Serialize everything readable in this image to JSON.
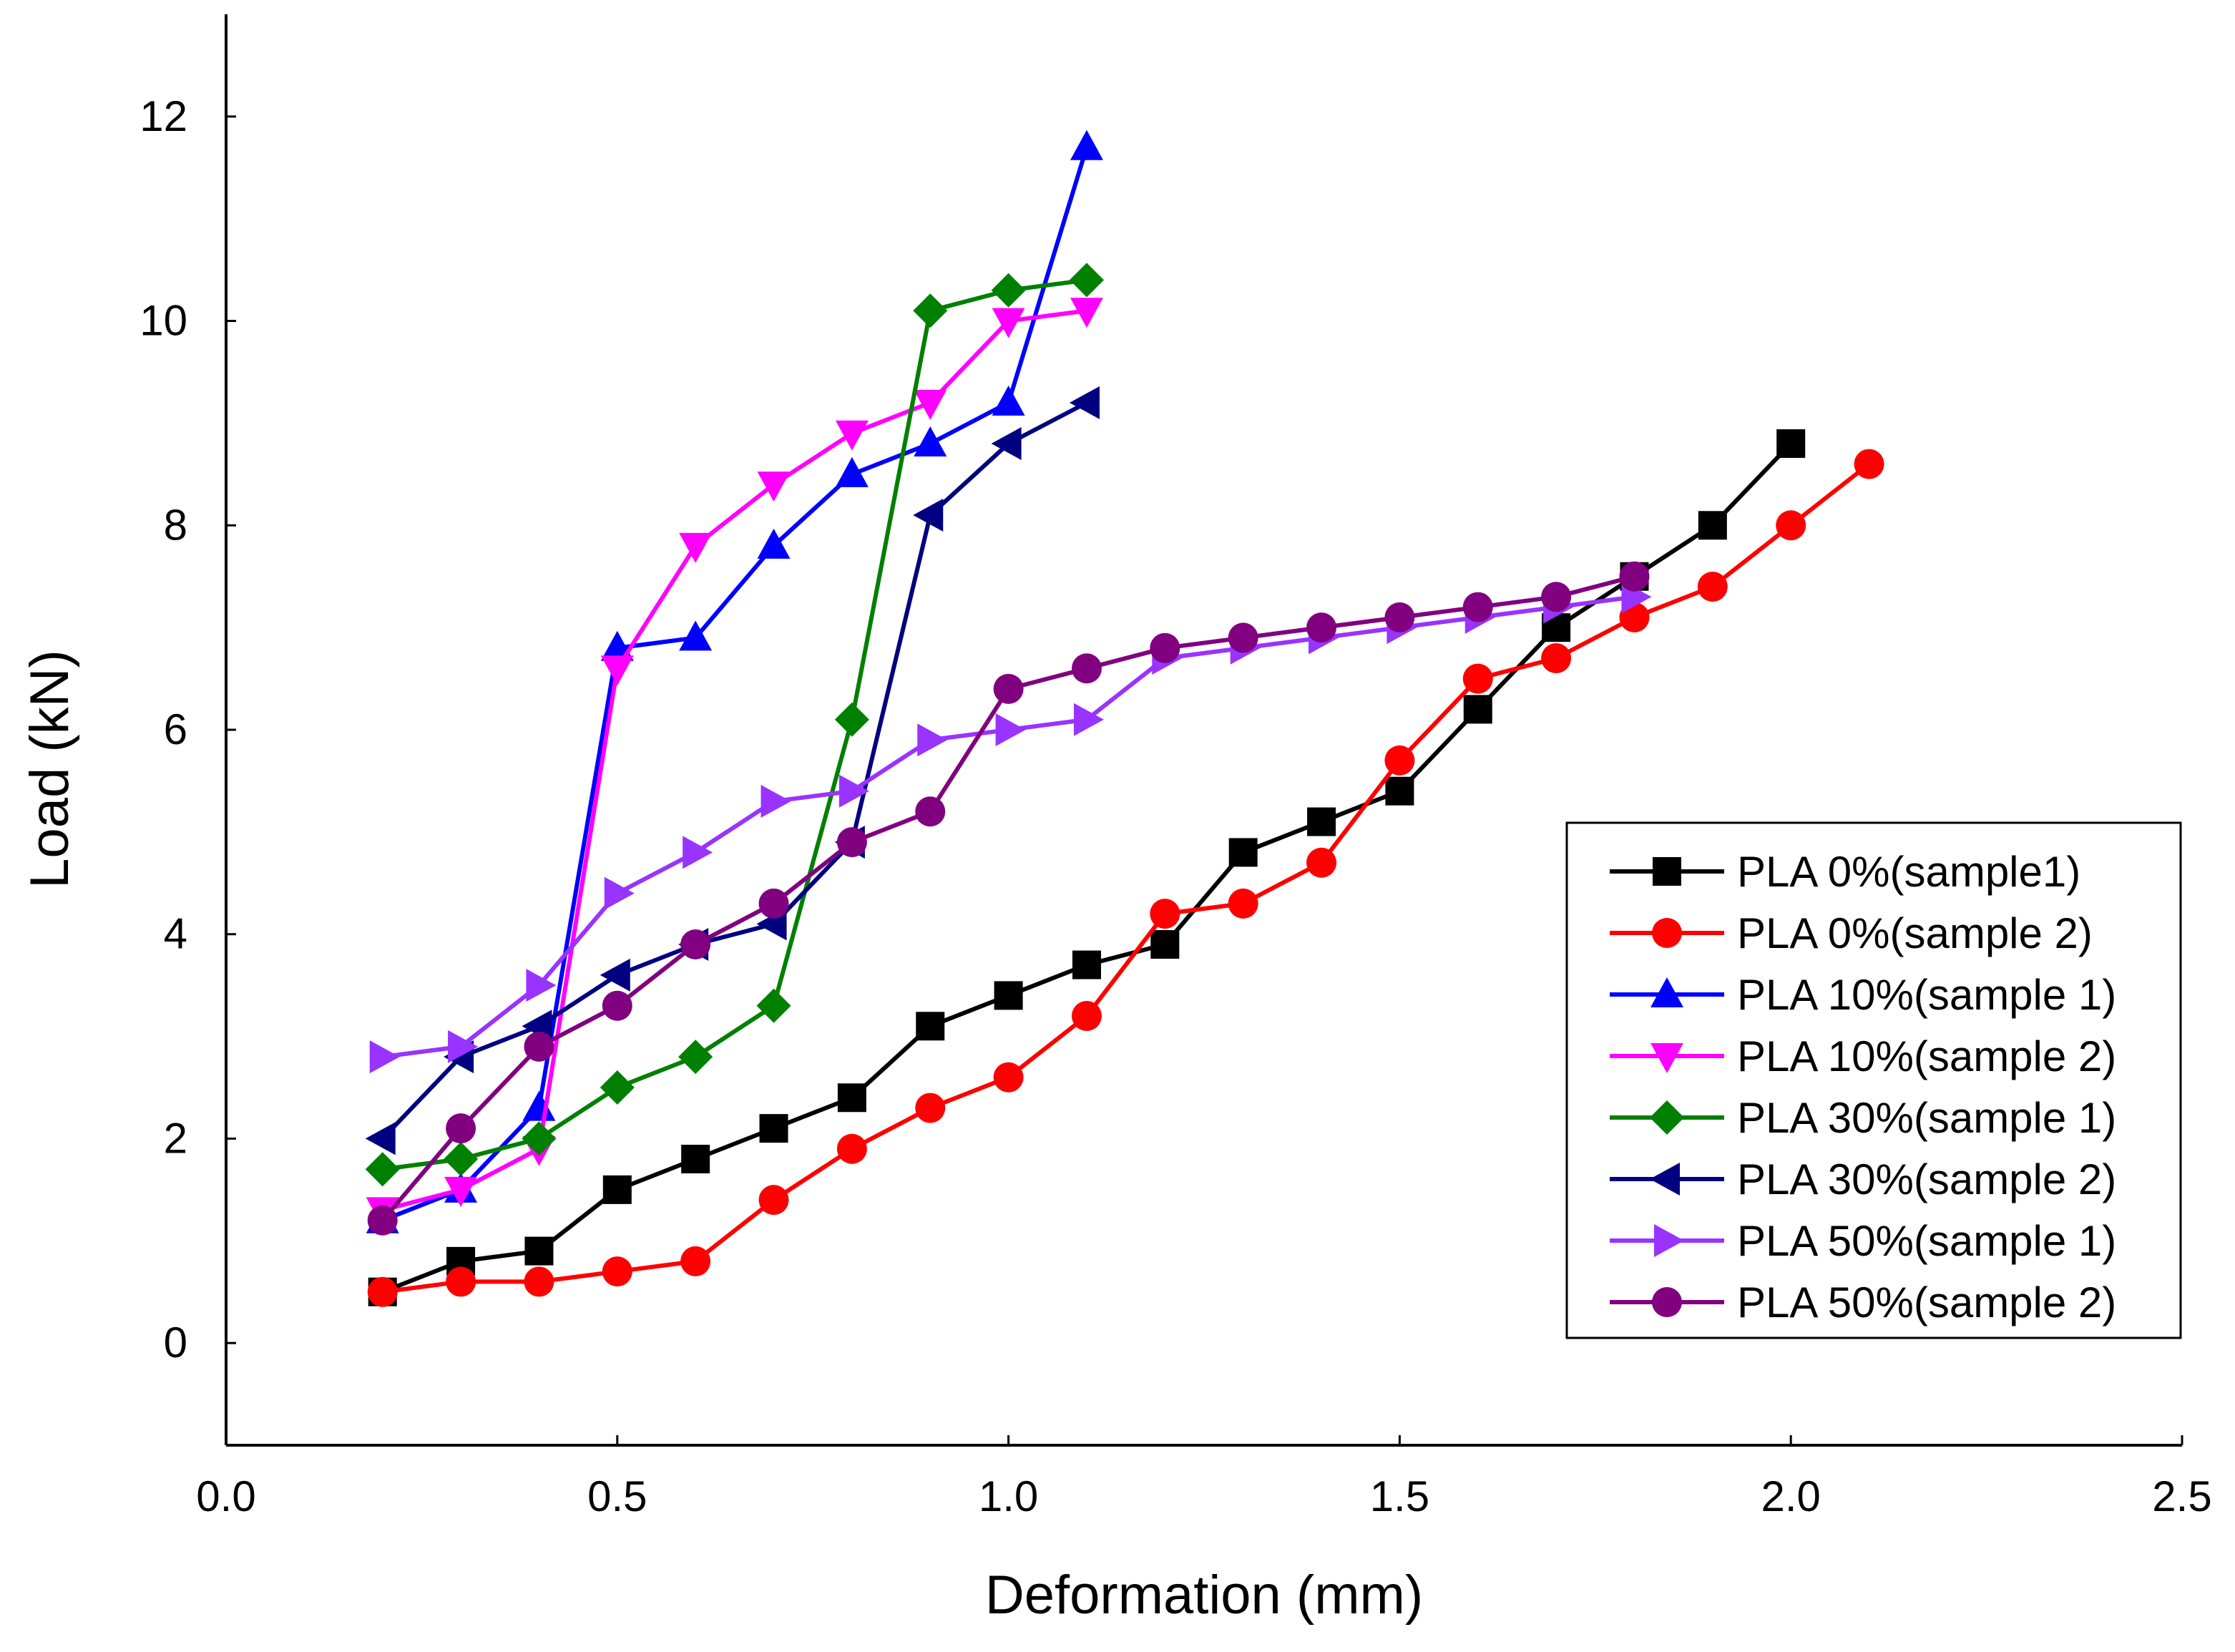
{
  "chart_data": {
    "type": "line",
    "title": "",
    "xlabel": "Deformation (mm)",
    "ylabel": "Load (kN)",
    "xlim": [
      0.0,
      2.5
    ],
    "ylim": [
      -1,
      13
    ],
    "xticks": [
      0.0,
      0.5,
      1.0,
      1.5,
      2.0,
      2.5
    ],
    "xtick_labels": [
      "0.0",
      "0.5",
      "1.0",
      "1.5",
      "2.0",
      "2.5"
    ],
    "yticks": [
      0,
      2,
      4,
      6,
      8,
      10,
      12
    ],
    "ytick_labels": [
      "0",
      "2",
      "4",
      "6",
      "8",
      "10",
      "12"
    ],
    "grid": false,
    "legend_position": "bottom-right",
    "series": [
      {
        "name": "PLA 0%(sample1)",
        "color": "#000000",
        "marker": "square",
        "x": [
          0.2,
          0.3,
          0.4,
          0.5,
          0.6,
          0.7,
          0.8,
          0.9,
          1.0,
          1.1,
          1.2,
          1.3,
          1.4,
          1.5,
          1.6,
          1.7,
          1.8,
          1.9,
          2.0
        ],
        "y": [
          0.5,
          0.8,
          0.9,
          1.5,
          1.8,
          2.1,
          2.4,
          3.1,
          3.4,
          3.7,
          3.9,
          4.8,
          5.1,
          5.4,
          6.2,
          7.0,
          7.5,
          8.0,
          8.8
        ]
      },
      {
        "name": "PLA 0%(sample 2)",
        "color": "#ff0000",
        "marker": "circle",
        "x": [
          0.2,
          0.3,
          0.4,
          0.5,
          0.6,
          0.7,
          0.8,
          0.9,
          1.0,
          1.1,
          1.2,
          1.3,
          1.4,
          1.5,
          1.6,
          1.7,
          1.8,
          1.9,
          2.0,
          2.1
        ],
        "y": [
          0.5,
          0.6,
          0.6,
          0.7,
          0.8,
          1.4,
          1.9,
          2.3,
          2.6,
          3.2,
          4.2,
          4.3,
          4.7,
          5.7,
          6.5,
          6.7,
          7.1,
          7.4,
          8.0,
          8.6
        ]
      },
      {
        "name": "PLA 10%(sample 1)",
        "color": "#0000ff",
        "marker": "triangle-up",
        "x": [
          0.2,
          0.3,
          0.4,
          0.5,
          0.6,
          0.7,
          0.8,
          0.9,
          1.0,
          1.1
        ],
        "y": [
          1.2,
          1.5,
          2.3,
          6.8,
          6.9,
          7.8,
          8.5,
          8.8,
          9.2,
          11.7
        ]
      },
      {
        "name": "PLA 10%(sample 2)",
        "color": "#ff00ff",
        "marker": "triangle-down",
        "x": [
          0.2,
          0.3,
          0.4,
          0.5,
          0.6,
          0.7,
          0.8,
          0.9,
          1.0,
          1.1
        ],
        "y": [
          1.3,
          1.5,
          1.9,
          6.6,
          7.8,
          8.4,
          8.9,
          9.2,
          10.0,
          10.1
        ]
      },
      {
        "name": "PLA 30%(sample 1)",
        "color": "#008000",
        "marker": "diamond",
        "x": [
          0.2,
          0.3,
          0.4,
          0.5,
          0.6,
          0.7,
          0.8,
          0.9,
          1.0,
          1.1
        ],
        "y": [
          1.7,
          1.8,
          2.0,
          2.5,
          2.8,
          3.3,
          6.1,
          10.1,
          10.3,
          10.4
        ]
      },
      {
        "name": "PLA 30%(sample 2)",
        "color": "#000080",
        "marker": "triangle-left",
        "x": [
          0.2,
          0.3,
          0.4,
          0.5,
          0.6,
          0.7,
          0.8,
          0.9,
          1.0,
          1.1
        ],
        "y": [
          2.0,
          2.8,
          3.1,
          3.6,
          3.9,
          4.1,
          4.9,
          8.1,
          8.8,
          9.2
        ]
      },
      {
        "name": "PLA 50%(sample 1)",
        "color": "#9933ff",
        "marker": "triangle-right",
        "x": [
          0.2,
          0.3,
          0.4,
          0.5,
          0.6,
          0.7,
          0.8,
          0.9,
          1.0,
          1.1,
          1.2,
          1.3,
          1.4,
          1.5,
          1.6,
          1.7,
          1.8
        ],
        "y": [
          2.8,
          2.9,
          3.5,
          4.4,
          4.8,
          5.3,
          5.4,
          5.9,
          6.0,
          6.1,
          6.7,
          6.8,
          6.9,
          7.0,
          7.1,
          7.2,
          7.3
        ]
      },
      {
        "name": "PLA 50%(sample 2)",
        "color": "#800080",
        "marker": "circle",
        "x": [
          0.2,
          0.3,
          0.4,
          0.5,
          0.6,
          0.7,
          0.8,
          0.9,
          1.0,
          1.1,
          1.2,
          1.3,
          1.4,
          1.5,
          1.6,
          1.7,
          1.8
        ],
        "y": [
          1.2,
          2.1,
          2.9,
          3.3,
          3.9,
          4.3,
          4.9,
          5.2,
          6.4,
          6.6,
          6.8,
          6.9,
          7.0,
          7.1,
          7.2,
          7.3,
          7.5
        ]
      }
    ]
  }
}
